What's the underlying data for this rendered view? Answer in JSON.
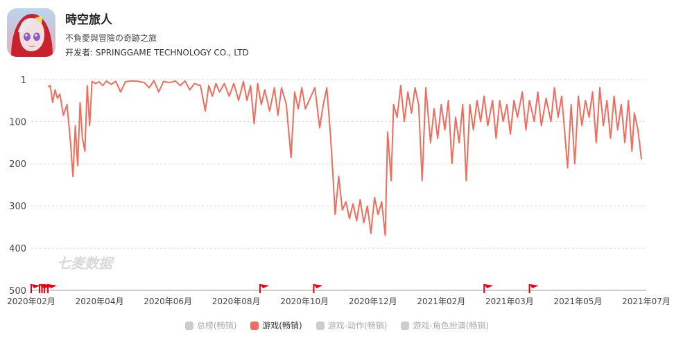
{
  "app": {
    "title": "時空旅人",
    "subtitle": "不負愛與冒險の奇跡之旅",
    "developer": "开发者: SPRINGGAME TECHNOLOGY CO., LTD"
  },
  "watermark": "七麦数据",
  "legend": [
    {
      "label": "总榜(畅销)",
      "active": false,
      "color": "#cccccc"
    },
    {
      "label": "游戏(畅销)",
      "active": true,
      "color": "#f26b5b"
    },
    {
      "label": "游戏-动作(畅销)",
      "active": false,
      "color": "#cccccc"
    },
    {
      "label": "游戏-角色扮演(畅销)",
      "active": false,
      "color": "#cccccc"
    }
  ],
  "colors": {
    "series": "#f26b5b",
    "flag": "#e60012",
    "grid": "#d8d8d8"
  },
  "chart_data": {
    "type": "line",
    "y_inverted": true,
    "ylim": [
      1,
      500
    ],
    "yticks": [
      1,
      100,
      200,
      300,
      400,
      500
    ],
    "xticks": [
      "2020年02月",
      "2020年04月",
      "2020年06月",
      "2020年08月",
      "2020年10月",
      "2020年12月",
      "2021年02月",
      "2021年03月",
      "2021年05月",
      "2021年07月"
    ],
    "xlim": [
      "2020-02-01",
      "2021-07-01"
    ],
    "series": [
      {
        "name": "游戏(畅销)",
        "points": [
          [
            "2020-02-15",
            18
          ],
          [
            "2020-02-17",
            15
          ],
          [
            "2020-02-19",
            55
          ],
          [
            "2020-02-21",
            25
          ],
          [
            "2020-02-23",
            45
          ],
          [
            "2020-02-25",
            35
          ],
          [
            "2020-02-28",
            85
          ],
          [
            "2020-03-02",
            60
          ],
          [
            "2020-03-05",
            150
          ],
          [
            "2020-03-07",
            230
          ],
          [
            "2020-03-09",
            110
          ],
          [
            "2020-03-11",
            205
          ],
          [
            "2020-03-13",
            55
          ],
          [
            "2020-03-15",
            140
          ],
          [
            "2020-03-17",
            170
          ],
          [
            "2020-03-19",
            15
          ],
          [
            "2020-03-21",
            110
          ],
          [
            "2020-03-23",
            5
          ],
          [
            "2020-03-26",
            10
          ],
          [
            "2020-03-29",
            6
          ],
          [
            "2020-04-01",
            15
          ],
          [
            "2020-04-04",
            4
          ],
          [
            "2020-04-08",
            12
          ],
          [
            "2020-04-12",
            5
          ],
          [
            "2020-04-16",
            30
          ],
          [
            "2020-04-20",
            6
          ],
          [
            "2020-04-25",
            4
          ],
          [
            "2020-05-01",
            5
          ],
          [
            "2020-05-06",
            8
          ],
          [
            "2020-05-10",
            20
          ],
          [
            "2020-05-14",
            3
          ],
          [
            "2020-05-18",
            30
          ],
          [
            "2020-05-22",
            5
          ],
          [
            "2020-05-27",
            8
          ],
          [
            "2020-06-01",
            4
          ],
          [
            "2020-06-05",
            15
          ],
          [
            "2020-06-09",
            4
          ],
          [
            "2020-06-13",
            25
          ],
          [
            "2020-06-17",
            10
          ],
          [
            "2020-06-22",
            15
          ],
          [
            "2020-06-26",
            75
          ],
          [
            "2020-06-29",
            15
          ],
          [
            "2020-07-02",
            40
          ],
          [
            "2020-07-05",
            10
          ],
          [
            "2020-07-08",
            30
          ],
          [
            "2020-07-12",
            10
          ],
          [
            "2020-07-16",
            40
          ],
          [
            "2020-07-20",
            10
          ],
          [
            "2020-07-24",
            50
          ],
          [
            "2020-07-28",
            5
          ],
          [
            "2020-07-31",
            50
          ],
          [
            "2020-08-03",
            15
          ],
          [
            "2020-08-06",
            105
          ],
          [
            "2020-08-09",
            10
          ],
          [
            "2020-08-12",
            60
          ],
          [
            "2020-08-15",
            25
          ],
          [
            "2020-08-19",
            75
          ],
          [
            "2020-08-23",
            20
          ],
          [
            "2020-08-26",
            85
          ],
          [
            "2020-08-29",
            20
          ],
          [
            "2020-09-02",
            60
          ],
          [
            "2020-09-06",
            185
          ],
          [
            "2020-09-09",
            30
          ],
          [
            "2020-09-12",
            70
          ],
          [
            "2020-09-15",
            20
          ],
          [
            "2020-09-18",
            70
          ],
          [
            "2020-09-22",
            45
          ],
          [
            "2020-09-26",
            20
          ],
          [
            "2020-09-30",
            115
          ],
          [
            "2020-10-03",
            60
          ],
          [
            "2020-10-06",
            20
          ],
          [
            "2020-10-09",
            130
          ],
          [
            "2020-10-11",
            220
          ],
          [
            "2020-10-13",
            320
          ],
          [
            "2020-10-16",
            230
          ],
          [
            "2020-10-19",
            310
          ],
          [
            "2020-10-22",
            290
          ],
          [
            "2020-10-25",
            330
          ],
          [
            "2020-10-28",
            295
          ],
          [
            "2020-10-31",
            335
          ],
          [
            "2020-11-03",
            285
          ],
          [
            "2020-11-06",
            340
          ],
          [
            "2020-11-09",
            300
          ],
          [
            "2020-11-12",
            365
          ],
          [
            "2020-11-15",
            280
          ],
          [
            "2020-11-18",
            320
          ],
          [
            "2020-11-21",
            290
          ],
          [
            "2020-11-24",
            370
          ],
          [
            "2020-11-26",
            125
          ],
          [
            "2020-11-29",
            240
          ],
          [
            "2020-12-01",
            60
          ],
          [
            "2020-12-04",
            90
          ],
          [
            "2020-12-07",
            15
          ],
          [
            "2020-12-10",
            100
          ],
          [
            "2020-12-13",
            30
          ],
          [
            "2020-12-16",
            80
          ],
          [
            "2020-12-19",
            20
          ],
          [
            "2020-12-22",
            60
          ],
          [
            "2020-12-25",
            240
          ],
          [
            "2020-12-28",
            20
          ],
          [
            "2021-01-01",
            150
          ],
          [
            "2021-01-04",
            70
          ],
          [
            "2021-01-07",
            140
          ],
          [
            "2021-01-10",
            60
          ],
          [
            "2021-01-13",
            120
          ],
          [
            "2021-01-16",
            50
          ],
          [
            "2021-01-19",
            200
          ],
          [
            "2021-01-22",
            90
          ],
          [
            "2021-01-25",
            150
          ],
          [
            "2021-01-28",
            60
          ],
          [
            "2021-01-31",
            240
          ],
          [
            "2021-02-03",
            60
          ],
          [
            "2021-02-06",
            120
          ],
          [
            "2021-02-09",
            50
          ],
          [
            "2021-02-12",
            100
          ],
          [
            "2021-02-15",
            40
          ],
          [
            "2021-02-18",
            110
          ],
          [
            "2021-02-22",
            50
          ],
          [
            "2021-02-25",
            140
          ],
          [
            "2021-02-28",
            50
          ],
          [
            "2021-03-03",
            100
          ],
          [
            "2021-03-06",
            60
          ],
          [
            "2021-03-09",
            130
          ],
          [
            "2021-03-12",
            50
          ],
          [
            "2021-03-15",
            90
          ],
          [
            "2021-03-19",
            30
          ],
          [
            "2021-03-22",
            120
          ],
          [
            "2021-03-25",
            50
          ],
          [
            "2021-03-29",
            100
          ],
          [
            "2021-04-01",
            30
          ],
          [
            "2021-04-04",
            110
          ],
          [
            "2021-04-08",
            45
          ],
          [
            "2021-04-12",
            100
          ],
          [
            "2021-04-15",
            20
          ],
          [
            "2021-04-18",
            90
          ],
          [
            "2021-04-21",
            40
          ],
          [
            "2021-04-24",
            140
          ],
          [
            "2021-04-26",
            210
          ],
          [
            "2021-04-29",
            60
          ],
          [
            "2021-05-02",
            200
          ],
          [
            "2021-05-05",
            40
          ],
          [
            "2021-05-08",
            110
          ],
          [
            "2021-05-11",
            50
          ],
          [
            "2021-05-14",
            90
          ],
          [
            "2021-05-17",
            30
          ],
          [
            "2021-05-20",
            150
          ],
          [
            "2021-05-23",
            20
          ],
          [
            "2021-05-26",
            110
          ],
          [
            "2021-05-29",
            50
          ],
          [
            "2021-06-01",
            140
          ],
          [
            "2021-06-04",
            40
          ],
          [
            "2021-06-07",
            120
          ],
          [
            "2021-06-10",
            60
          ],
          [
            "2021-06-13",
            150
          ],
          [
            "2021-06-16",
            50
          ],
          [
            "2021-06-19",
            170
          ],
          [
            "2021-06-21",
            80
          ],
          [
            "2021-06-24",
            120
          ],
          [
            "2021-06-27",
            190
          ]
        ]
      }
    ],
    "flags": [
      "2020-02-01",
      "2020-02-08",
      "2020-02-10",
      "2020-02-12",
      "2020-02-15",
      "2020-08-11",
      "2020-09-25",
      "2021-02-15",
      "2021-03-25"
    ]
  }
}
